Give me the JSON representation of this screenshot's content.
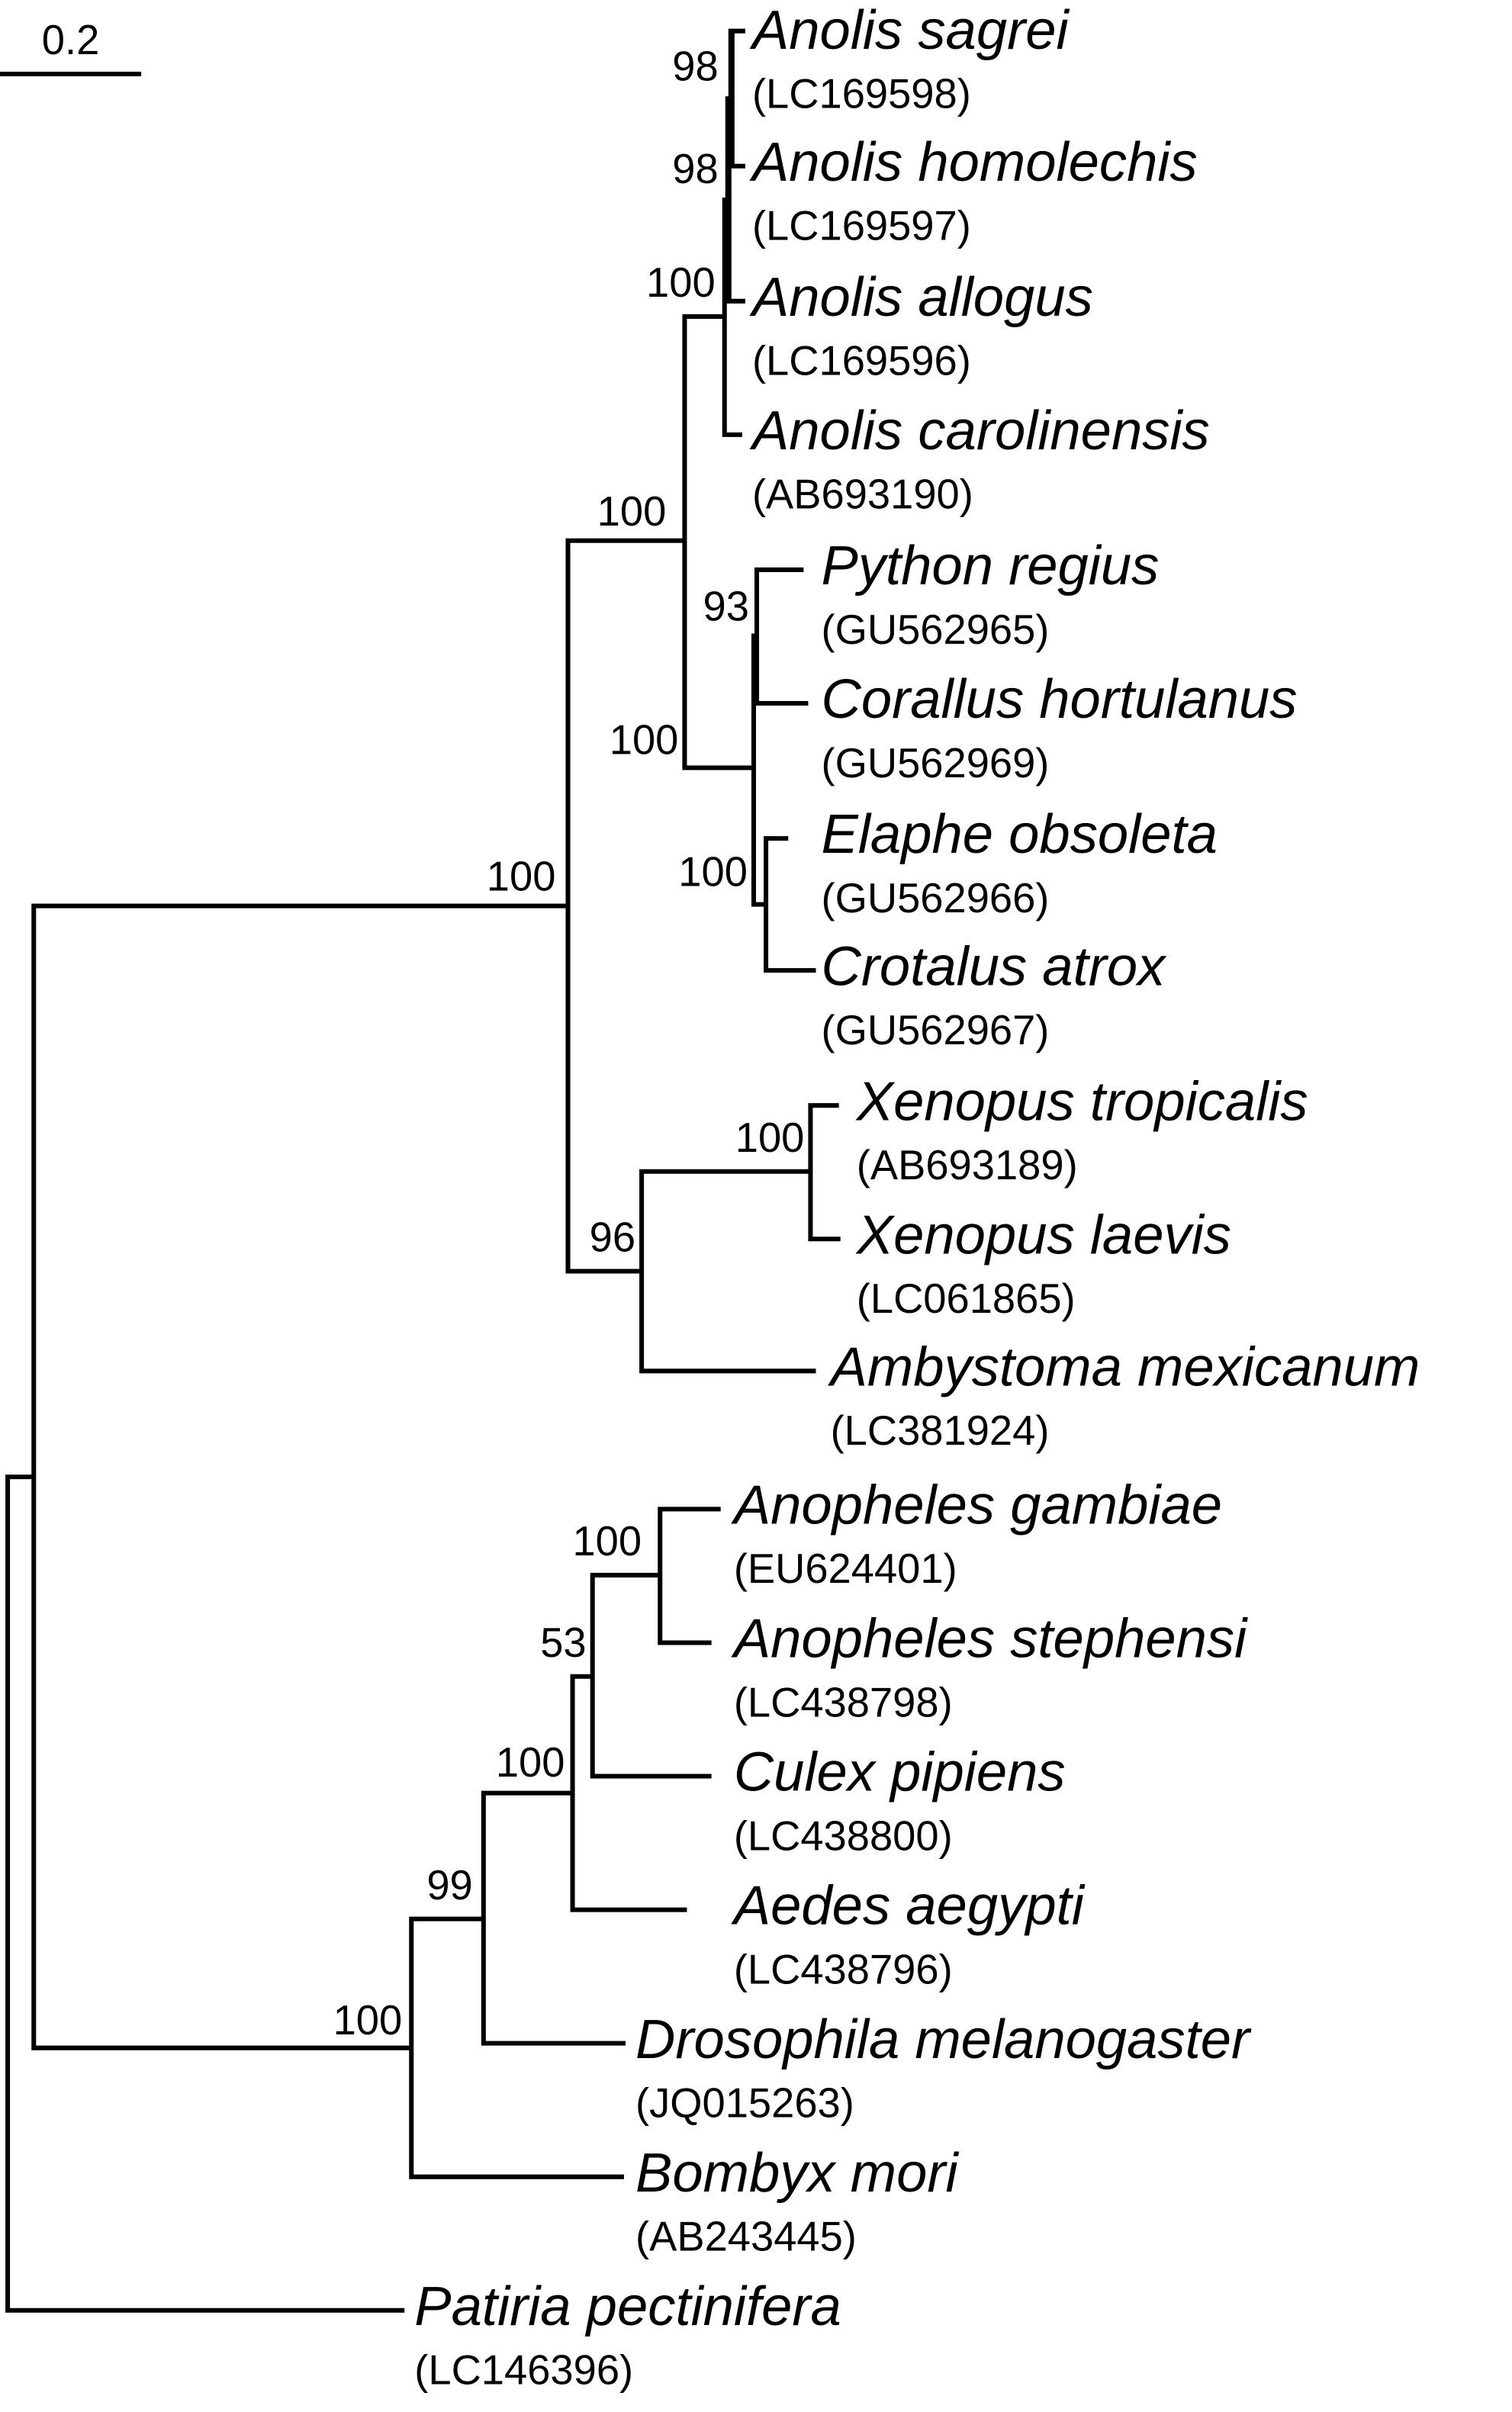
{
  "scale_bar": {
    "label": "0.2"
  },
  "taxa": [
    {
      "name": "Anolis sagrei",
      "accession": "(LC169598)"
    },
    {
      "name": "Anolis homolechis",
      "accession": "(LC169597)"
    },
    {
      "name": "Anolis allogus",
      "accession": "(LC169596)"
    },
    {
      "name": "Anolis carolinensis",
      "accession": "(AB693190)"
    },
    {
      "name": "Python regius",
      "accession": "(GU562965)"
    },
    {
      "name": "Corallus hortulanus",
      "accession": "(GU562969)"
    },
    {
      "name": "Elaphe obsoleta",
      "accession": "(GU562966)"
    },
    {
      "name": "Crotalus atrox",
      "accession": "(GU562967)"
    },
    {
      "name": "Xenopus tropicalis",
      "accession": "(AB693189)"
    },
    {
      "name": "Xenopus laevis",
      "accession": "(LC061865)"
    },
    {
      "name": "Ambystoma mexicanum",
      "accession": "(LC381924)"
    },
    {
      "name": "Anopheles gambiae",
      "accession": "(EU624401)"
    },
    {
      "name": "Anopheles stephensi",
      "accession": "(LC438798)"
    },
    {
      "name": "Culex pipiens",
      "accession": "(LC438800)"
    },
    {
      "name": "Aedes aegypti",
      "accession": "(LC438796)"
    },
    {
      "name": "Drosophila melanogaster",
      "accession": "(JQ015263)"
    },
    {
      "name": "Bombyx mori",
      "accession": "(AB243445)"
    },
    {
      "name": "Patiria pectinifera",
      "accession": "(LC146396)"
    }
  ],
  "support": [
    98,
    98,
    100,
    100,
    93,
    100,
    100,
    100,
    100,
    96,
    100,
    53,
    100,
    99,
    100
  ]
}
